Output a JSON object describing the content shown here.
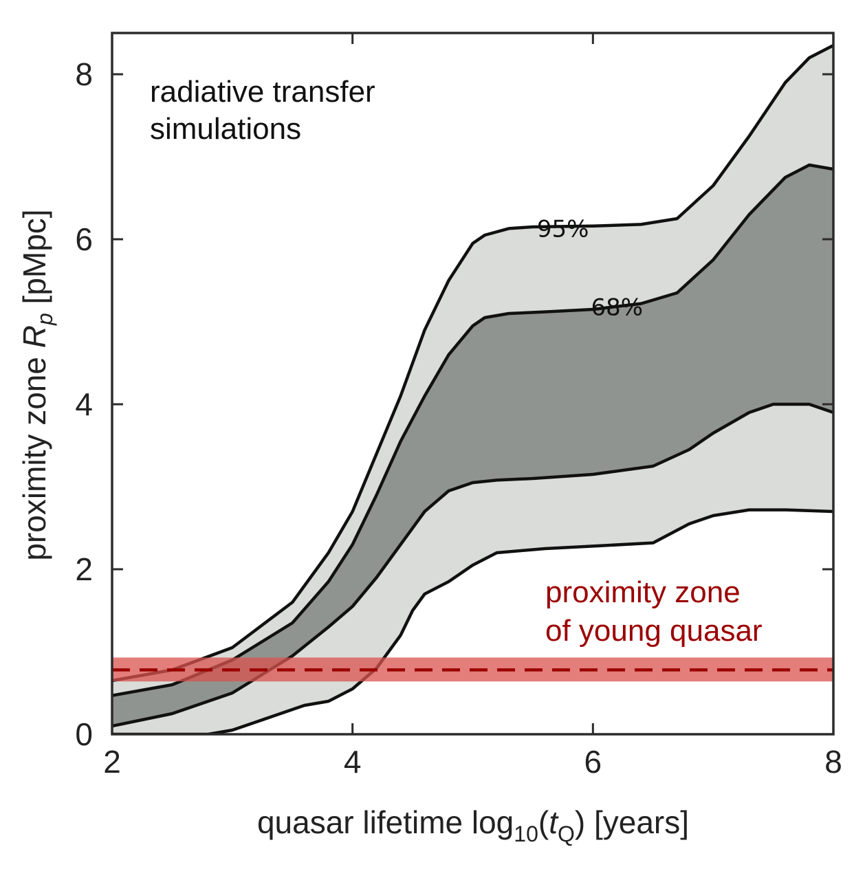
{
  "chart_data": {
    "type": "area",
    "title": "",
    "xlabel": "quasar lifetime log",
    "xlabel_sub": "10",
    "xlabel_var": "t",
    "xlabel_var_sub": "Q",
    "xlabel_tail": ") [years]",
    "ylabel": "proximity zone ",
    "ylabel_var": "R",
    "ylabel_var_sub": "p",
    "ylabel_tail": " [pMpc]",
    "xlim": [
      2,
      8
    ],
    "ylim": [
      0,
      8.5
    ],
    "xticks": [
      2,
      4,
      6,
      8
    ],
    "yticks": [
      0,
      2,
      4,
      6,
      8
    ],
    "grid": false,
    "colors": {
      "band95": "#dadcd9",
      "band68": "#909490",
      "contour": "#111111",
      "young_band": "#d9534f",
      "young_line": "#9b0000",
      "young_text": "#9b0000",
      "axis": "#2b2b2b"
    },
    "series": [
      {
        "name": "95% upper",
        "x": [
          2.0,
          2.5,
          3.0,
          3.5,
          3.8,
          4.0,
          4.2,
          4.4,
          4.6,
          4.8,
          5.0,
          5.1,
          5.3,
          5.5,
          6.0,
          6.4,
          6.7,
          7.0,
          7.3,
          7.6,
          7.8,
          8.0
        ],
        "y": [
          0.65,
          0.78,
          1.05,
          1.6,
          2.2,
          2.7,
          3.4,
          4.1,
          4.9,
          5.5,
          5.95,
          6.05,
          6.13,
          6.15,
          6.16,
          6.18,
          6.25,
          6.65,
          7.25,
          7.9,
          8.2,
          8.35
        ]
      },
      {
        "name": "68% upper",
        "x": [
          2.0,
          2.5,
          3.0,
          3.5,
          3.8,
          4.0,
          4.2,
          4.4,
          4.6,
          4.8,
          5.0,
          5.1,
          5.3,
          5.6,
          6.0,
          6.4,
          6.7,
          7.0,
          7.3,
          7.6,
          7.8,
          8.0
        ],
        "y": [
          0.47,
          0.6,
          0.9,
          1.35,
          1.85,
          2.3,
          2.9,
          3.55,
          4.1,
          4.6,
          4.95,
          5.05,
          5.1,
          5.12,
          5.15,
          5.22,
          5.35,
          5.75,
          6.3,
          6.75,
          6.9,
          6.85
        ]
      },
      {
        "name": "68% lower",
        "x": [
          2.0,
          2.5,
          3.0,
          3.5,
          3.8,
          4.0,
          4.2,
          4.4,
          4.6,
          4.8,
          5.0,
          5.2,
          5.5,
          6.0,
          6.5,
          6.8,
          7.0,
          7.3,
          7.5,
          7.8,
          8.0
        ],
        "y": [
          0.1,
          0.25,
          0.5,
          0.95,
          1.3,
          1.55,
          1.9,
          2.3,
          2.7,
          2.95,
          3.05,
          3.08,
          3.1,
          3.15,
          3.25,
          3.45,
          3.65,
          3.9,
          4.0,
          4.0,
          3.9
        ]
      },
      {
        "name": "95% lower",
        "x": [
          2.0,
          2.5,
          2.8,
          3.0,
          3.3,
          3.6,
          3.8,
          4.0,
          4.2,
          4.4,
          4.5,
          4.6,
          4.8,
          5.0,
          5.2,
          5.6,
          6.0,
          6.5,
          6.8,
          7.0,
          7.3,
          7.6,
          8.0
        ],
        "y": [
          0.0,
          0.0,
          0.0,
          0.05,
          0.2,
          0.35,
          0.4,
          0.55,
          0.8,
          1.2,
          1.5,
          1.7,
          1.85,
          2.05,
          2.2,
          2.25,
          2.28,
          2.32,
          2.55,
          2.65,
          2.72,
          2.72,
          2.7
        ]
      }
    ],
    "contour_labels": [
      {
        "text": "95%",
        "x": 5.75,
        "y": 6.13
      },
      {
        "text": "68%",
        "x": 6.2,
        "y": 5.18
      }
    ],
    "young_quasar": {
      "value": 0.78,
      "low": 0.64,
      "high": 0.93,
      "label_line1": "proximity zone",
      "label_line2": "of young quasar"
    },
    "annotation": {
      "line1": "radiative transfer",
      "line2": "simulations"
    }
  }
}
